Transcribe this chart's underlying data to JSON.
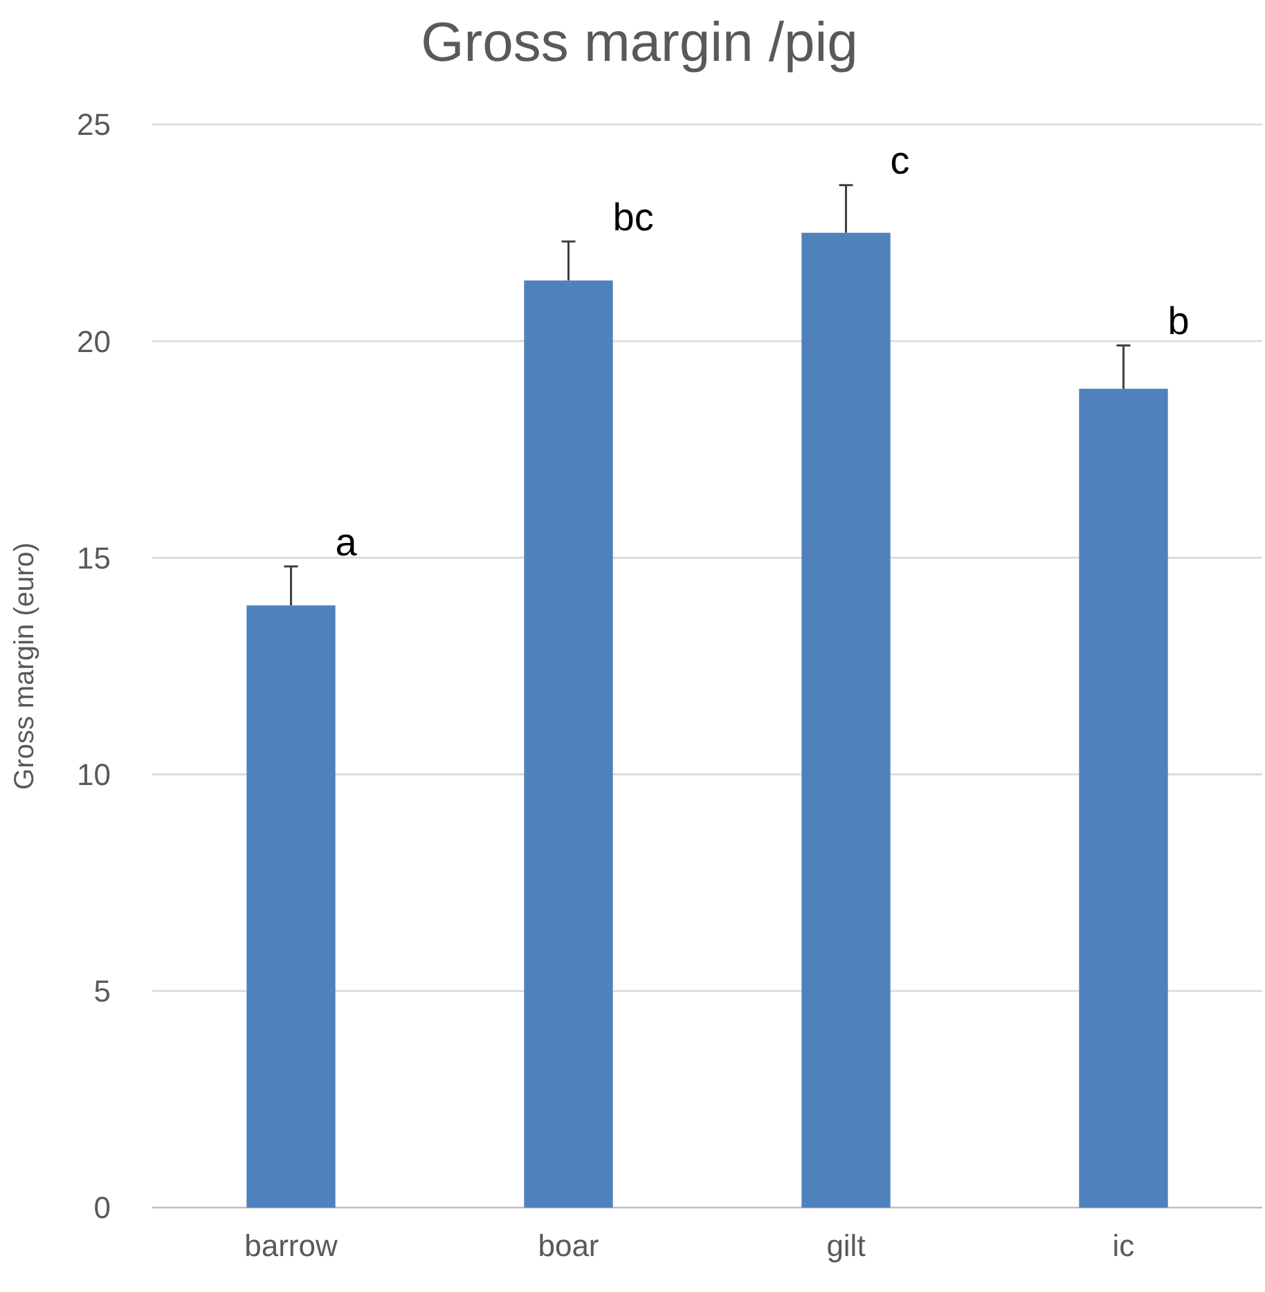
{
  "chart_data": {
    "type": "bar",
    "title": "Gross margin /pig",
    "ylabel": "Gross margin (euro)",
    "categories": [
      "barrow",
      "boar",
      "gilt",
      "ic"
    ],
    "values": [
      13.9,
      21.4,
      22.5,
      18.9
    ],
    "errors": [
      [
        13.9,
        14.8
      ],
      [
        21.4,
        22.3
      ],
      [
        22.5,
        23.6
      ],
      [
        18.9,
        19.9
      ]
    ],
    "color": "#4f81bd",
    "ylim": [
      0,
      25
    ],
    "yticks": [
      0,
      5,
      10,
      15,
      20,
      25
    ],
    "grid": "y",
    "annotations": [
      "a",
      "bc",
      "c",
      "b"
    ]
  }
}
